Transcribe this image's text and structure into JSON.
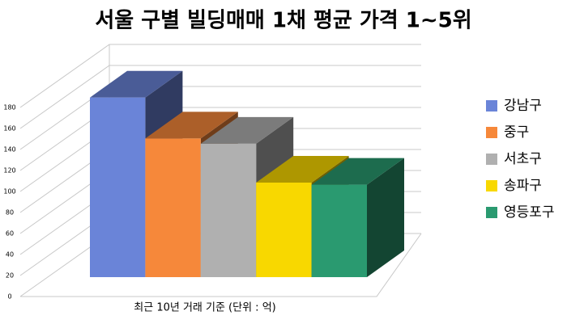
{
  "chart_data": {
    "type": "bar3d",
    "title": "서울 구별 빌딩매매 1채 평균 가격 1~5위",
    "x_label": "최근 10년 거래 기준 (단위 : 억)",
    "categories": [
      "강남구",
      "중구",
      "서초구",
      "송파구",
      "영등포구"
    ],
    "values": [
      171,
      132,
      127,
      90,
      88
    ],
    "colors": [
      "#6a84d8",
      "#f6883a",
      "#b0b0b0",
      "#f8d800",
      "#2a9a70"
    ],
    "ylim": [
      0,
      180
    ],
    "yticks": [
      0,
      20,
      40,
      60,
      80,
      100,
      120,
      140,
      160,
      180
    ],
    "grid": true,
    "legend": "right"
  }
}
